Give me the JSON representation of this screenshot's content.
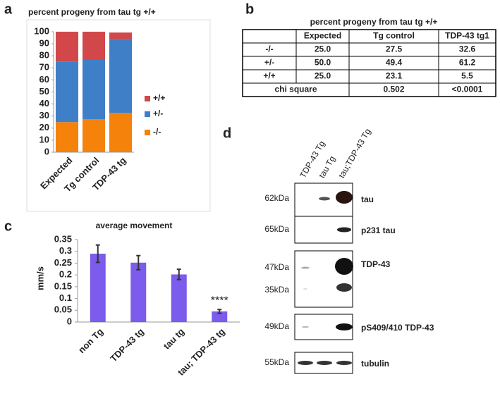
{
  "panel_labels": [
    "a",
    "b",
    "c",
    "d"
  ],
  "chart_data": [
    {
      "type": "stacked-bar",
      "title": "percent progeny from tau tg +/+",
      "categories": [
        "Expected",
        "Tg control",
        "TDP-43 tg"
      ],
      "series": [
        {
          "name": "-/-",
          "color": "#f5820a",
          "values": [
            25.0,
            27.5,
            32.6
          ]
        },
        {
          "name": "+/-",
          "color": "#3f7fc8",
          "values": [
            50.0,
            49.4,
            61.2
          ]
        },
        {
          "name": "+/+",
          "color": "#d2474a",
          "values": [
            25.0,
            23.1,
            5.5
          ]
        }
      ],
      "ylim": [
        0,
        100
      ],
      "yticks": [
        0,
        10,
        20,
        30,
        40,
        50,
        60,
        70,
        80,
        90,
        100
      ],
      "legend": "right"
    },
    {
      "type": "bar",
      "title": "average movement",
      "y_label": "mm/s",
      "categories": [
        "non Tg",
        "TDP-43 tg",
        "tau tg",
        "tau; TDP-43 tg"
      ],
      "values": [
        0.29,
        0.252,
        0.202,
        0.045
      ],
      "errors": [
        0.037,
        0.03,
        0.022,
        0.008
      ],
      "color": "#7b5cec",
      "ylim": [
        0,
        0.35
      ],
      "yticks": [
        0,
        0.05,
        0.1,
        0.15,
        0.2,
        0.25,
        0.3,
        0.35
      ],
      "annotation": "****"
    }
  ],
  "table": {
    "title": "percent progeny from tau tg +/+",
    "header": [
      "Expected",
      "Tg control",
      "TDP-43 tg1"
    ],
    "rows": [
      [
        "-/-",
        "25.0",
        "27.5",
        "32.6"
      ],
      [
        "+/-",
        "50.0",
        "49.4",
        "61.2"
      ],
      [
        "+/+",
        "25.0",
        "23.1",
        "5.5"
      ]
    ],
    "footer": [
      "chi square",
      "0.502",
      "<0.0001"
    ]
  },
  "blot": {
    "lanes": [
      "TDP-43 Tg",
      "tau Tg",
      "tau;TDP-43 Tg"
    ],
    "panels": [
      {
        "markers": [
          "62kDa"
        ],
        "label": "tau"
      },
      {
        "markers": [
          "65kDa"
        ],
        "label": "p231 tau"
      },
      {
        "markers": [
          "47kDa",
          "35kDa"
        ],
        "label": "TDP-43"
      },
      {
        "markers": [
          "49kDa"
        ],
        "label": "pS409/410 TDP-43"
      },
      {
        "markers": [
          "55kDa"
        ],
        "label": "tubulin"
      }
    ]
  }
}
